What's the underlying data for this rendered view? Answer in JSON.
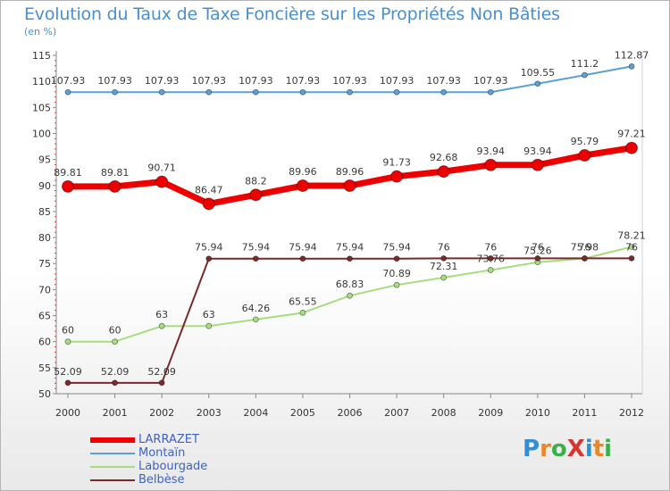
{
  "title": "Evolution du Taux de Taxe Foncière sur les Propriétés Non Bâties",
  "unit": "(en %)",
  "logo": {
    "text": "ProXiti",
    "letters": [
      {
        "ch": "P",
        "color": "#2f8fd8"
      },
      {
        "ch": "r",
        "color": "#e8882c"
      },
      {
        "ch": "o",
        "color": "#3bb04a"
      },
      {
        "ch": "X",
        "color": "#d8332f"
      },
      {
        "ch": "i",
        "color": "#2f8fd8"
      },
      {
        "ch": "t",
        "color": "#e8882c"
      },
      {
        "ch": "i",
        "color": "#3bb04a"
      }
    ]
  },
  "chart_data": {
    "type": "line",
    "title": "Evolution du Taux de Taxe Foncière sur les Propriétés Non Bâties",
    "ylabel": "(en %)",
    "xlabel": "",
    "ylim": [
      50,
      115
    ],
    "yticks": [
      50,
      55,
      60,
      65,
      70,
      75,
      80,
      85,
      90,
      95,
      100,
      105,
      110,
      115
    ],
    "grid": false,
    "legend_position": "bottom-left",
    "x": [
      "2000",
      "2001",
      "2002",
      "2003",
      "2004",
      "2005",
      "2006",
      "2007",
      "2008",
      "2009",
      "2010",
      "2011",
      "2012"
    ],
    "series": [
      {
        "name": "Montaïn",
        "color": "#5ba0d8",
        "thick": false,
        "values": [
          107.93,
          107.93,
          107.93,
          107.93,
          107.93,
          107.93,
          107.93,
          107.93,
          107.93,
          107.93,
          109.55,
          111.2,
          112.87
        ],
        "labels": [
          "107.93",
          "107.93",
          "107.93",
          "107.93",
          "107.93",
          "107.93",
          "107.93",
          "107.93",
          "107.93",
          "107.93",
          "109.55",
          "111.2",
          "112.87"
        ]
      },
      {
        "name": "LARRAZET",
        "color": "#ee0000",
        "thick": true,
        "values": [
          89.81,
          89.81,
          90.71,
          86.47,
          88.2,
          89.96,
          89.96,
          91.73,
          92.68,
          93.94,
          93.94,
          95.79,
          97.21
        ],
        "labels": [
          "89.81",
          "89.81",
          "90.71",
          "86.47",
          "88.2",
          "89.96",
          "89.96",
          "91.73",
          "92.68",
          "93.94",
          "93.94",
          "95.79",
          "97.21"
        ]
      },
      {
        "name": "Labourgade",
        "color": "#a6dd7f",
        "thick": false,
        "values": [
          60,
          60,
          63,
          63,
          64.26,
          65.55,
          68.83,
          70.89,
          72.31,
          73.76,
          75.26,
          75.98,
          78.21
        ],
        "labels": [
          "60",
          "60",
          "63",
          "63",
          "64.26",
          "65.55",
          "68.83",
          "70.89",
          "72.31",
          "73.76",
          "75.26",
          "75.98",
          "78.21"
        ]
      },
      {
        "name": "Belbèse",
        "color": "#7a2a2a",
        "thick": false,
        "values": [
          52.09,
          52.09,
          52.09,
          75.94,
          75.94,
          75.94,
          75.94,
          75.94,
          76,
          76,
          76,
          76,
          76
        ],
        "labels": [
          "52.09",
          "52.09",
          "52.09",
          "75.94",
          "75.94",
          "75.94",
          "75.94",
          "75.94",
          "76",
          "76",
          "76",
          "76",
          "76"
        ]
      }
    ],
    "legend": [
      {
        "name": "LARRAZET",
        "color": "#ee0000",
        "thick": true
      },
      {
        "name": "Montaïn",
        "color": "#5ba0d8",
        "thick": false
      },
      {
        "name": "Labourgade",
        "color": "#a6dd7f",
        "thick": false
      },
      {
        "name": "Belbèse",
        "color": "#7a2a2a",
        "thick": false
      }
    ]
  }
}
